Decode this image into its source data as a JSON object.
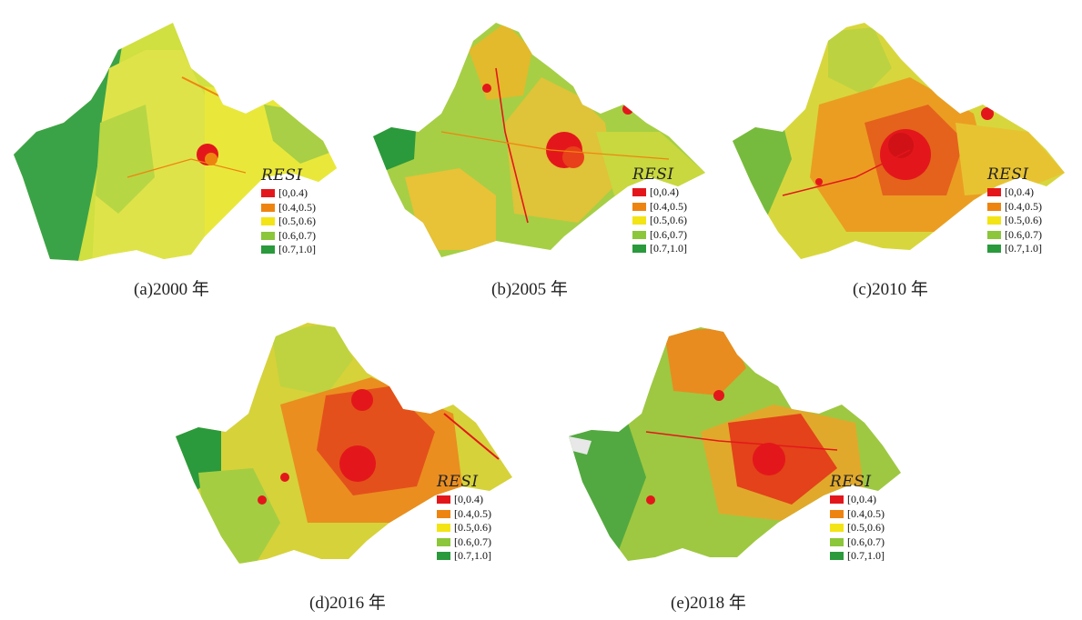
{
  "legend": {
    "title": "RESI",
    "classes": [
      {
        "label": "[0,0.4)",
        "color": "#e3171b"
      },
      {
        "label": "[0.4,0.5)",
        "color": "#ee8410"
      },
      {
        "label": "[0.5,0.6)",
        "color": "#f3e415"
      },
      {
        "label": "[0.6,0.7)",
        "color": "#8cc63a"
      },
      {
        "label": "[0.7,1.0]",
        "color": "#2a9a3c"
      }
    ]
  },
  "panels": [
    {
      "caption": "(a)2000 年"
    },
    {
      "caption": "(b)2005 年"
    },
    {
      "caption": "(c)2010 年"
    },
    {
      "caption": "(d)2016 年"
    },
    {
      "caption": "(e)2018 年"
    }
  ]
}
